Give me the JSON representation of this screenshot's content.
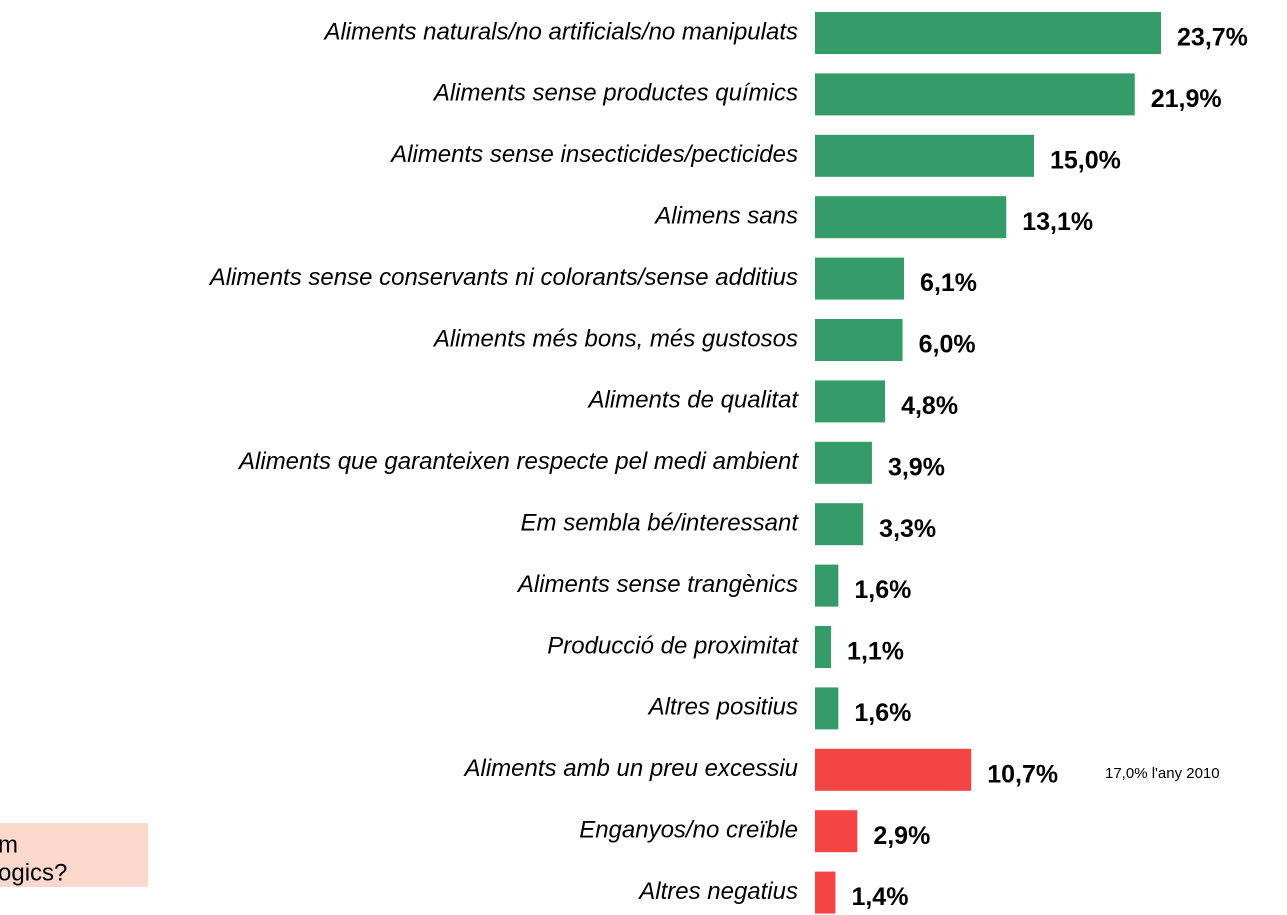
{
  "chart_data": {
    "type": "barh",
    "categories": [
      "Aliments naturals/no artificials/no manipulats",
      "Aliments sense productes químics",
      "Aliments sense insecticides/pecticides",
      "Alimens sans",
      "Aliments sense conservants ni colorants/sense additius",
      "Aliments més bons, més gustosos",
      "Aliments de qualitat",
      "Aliments que garanteixen respecte pel medi ambient",
      "Em sembla bé/interessant",
      "Aliments sense trangènics",
      "Producció de proximitat",
      "Altres positius",
      "Aliments amb un preu excessiu",
      "Enganyos/no creïble",
      "Altres negatius"
    ],
    "values": [
      23.7,
      21.9,
      15.0,
      13.1,
      6.1,
      6.0,
      4.8,
      3.9,
      3.3,
      1.6,
      1.1,
      1.6,
      10.7,
      2.9,
      1.4
    ],
    "value_labels": [
      "23,7%",
      "21,9%",
      "15,0%",
      "13,1%",
      "6,1%",
      "6,0%",
      "4,8%",
      "3,9%",
      "3,3%",
      "1,6%",
      "1,1%",
      "1,6%",
      "10,7%",
      "2,9%",
      "1,4%"
    ],
    "colors": [
      "#359b68",
      "#359b68",
      "#359b68",
      "#359b68",
      "#359b68",
      "#359b68",
      "#359b68",
      "#359b68",
      "#359b68",
      "#359b68",
      "#359b68",
      "#359b68",
      "#f44444",
      "#f44444",
      "#f44444"
    ],
    "xlim": [
      0,
      25
    ],
    "annotations": [
      {
        "index": 12,
        "text": "17,0% l'any 2010"
      }
    ],
    "side_box": [
      "m",
      "ogics?"
    ]
  }
}
